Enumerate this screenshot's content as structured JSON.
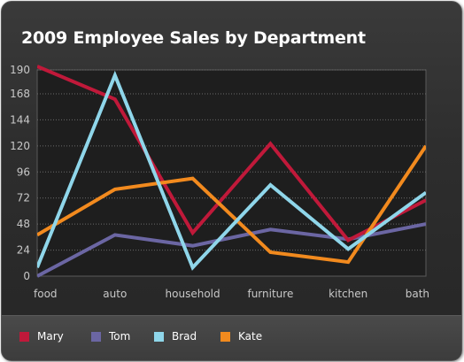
{
  "chart_data": {
    "type": "line",
    "title": "2009 Employee Sales by Department",
    "categories": [
      "food",
      "auto",
      "household",
      "furniture",
      "kitchen",
      "bath"
    ],
    "yticks": [
      "0",
      "24",
      "48",
      "72",
      "96",
      "120",
      "144",
      "168",
      "190"
    ],
    "ylim": [
      0,
      190
    ],
    "grid": true,
    "legend_position": "bottom",
    "series": [
      {
        "name": "Mary",
        "color": "#c0193a",
        "values": [
          195,
          163,
          40,
          122,
          33,
          70
        ]
      },
      {
        "name": "Tom",
        "color": "#6b66a3",
        "values": [
          0,
          38,
          28,
          43,
          34,
          48
        ]
      },
      {
        "name": "Brad",
        "color": "#8fd6ea",
        "values": [
          8,
          185,
          8,
          84,
          25,
          77
        ]
      },
      {
        "name": "Kate",
        "color": "#f28a1e",
        "values": [
          38,
          80,
          90,
          22,
          13,
          120
        ]
      }
    ]
  }
}
